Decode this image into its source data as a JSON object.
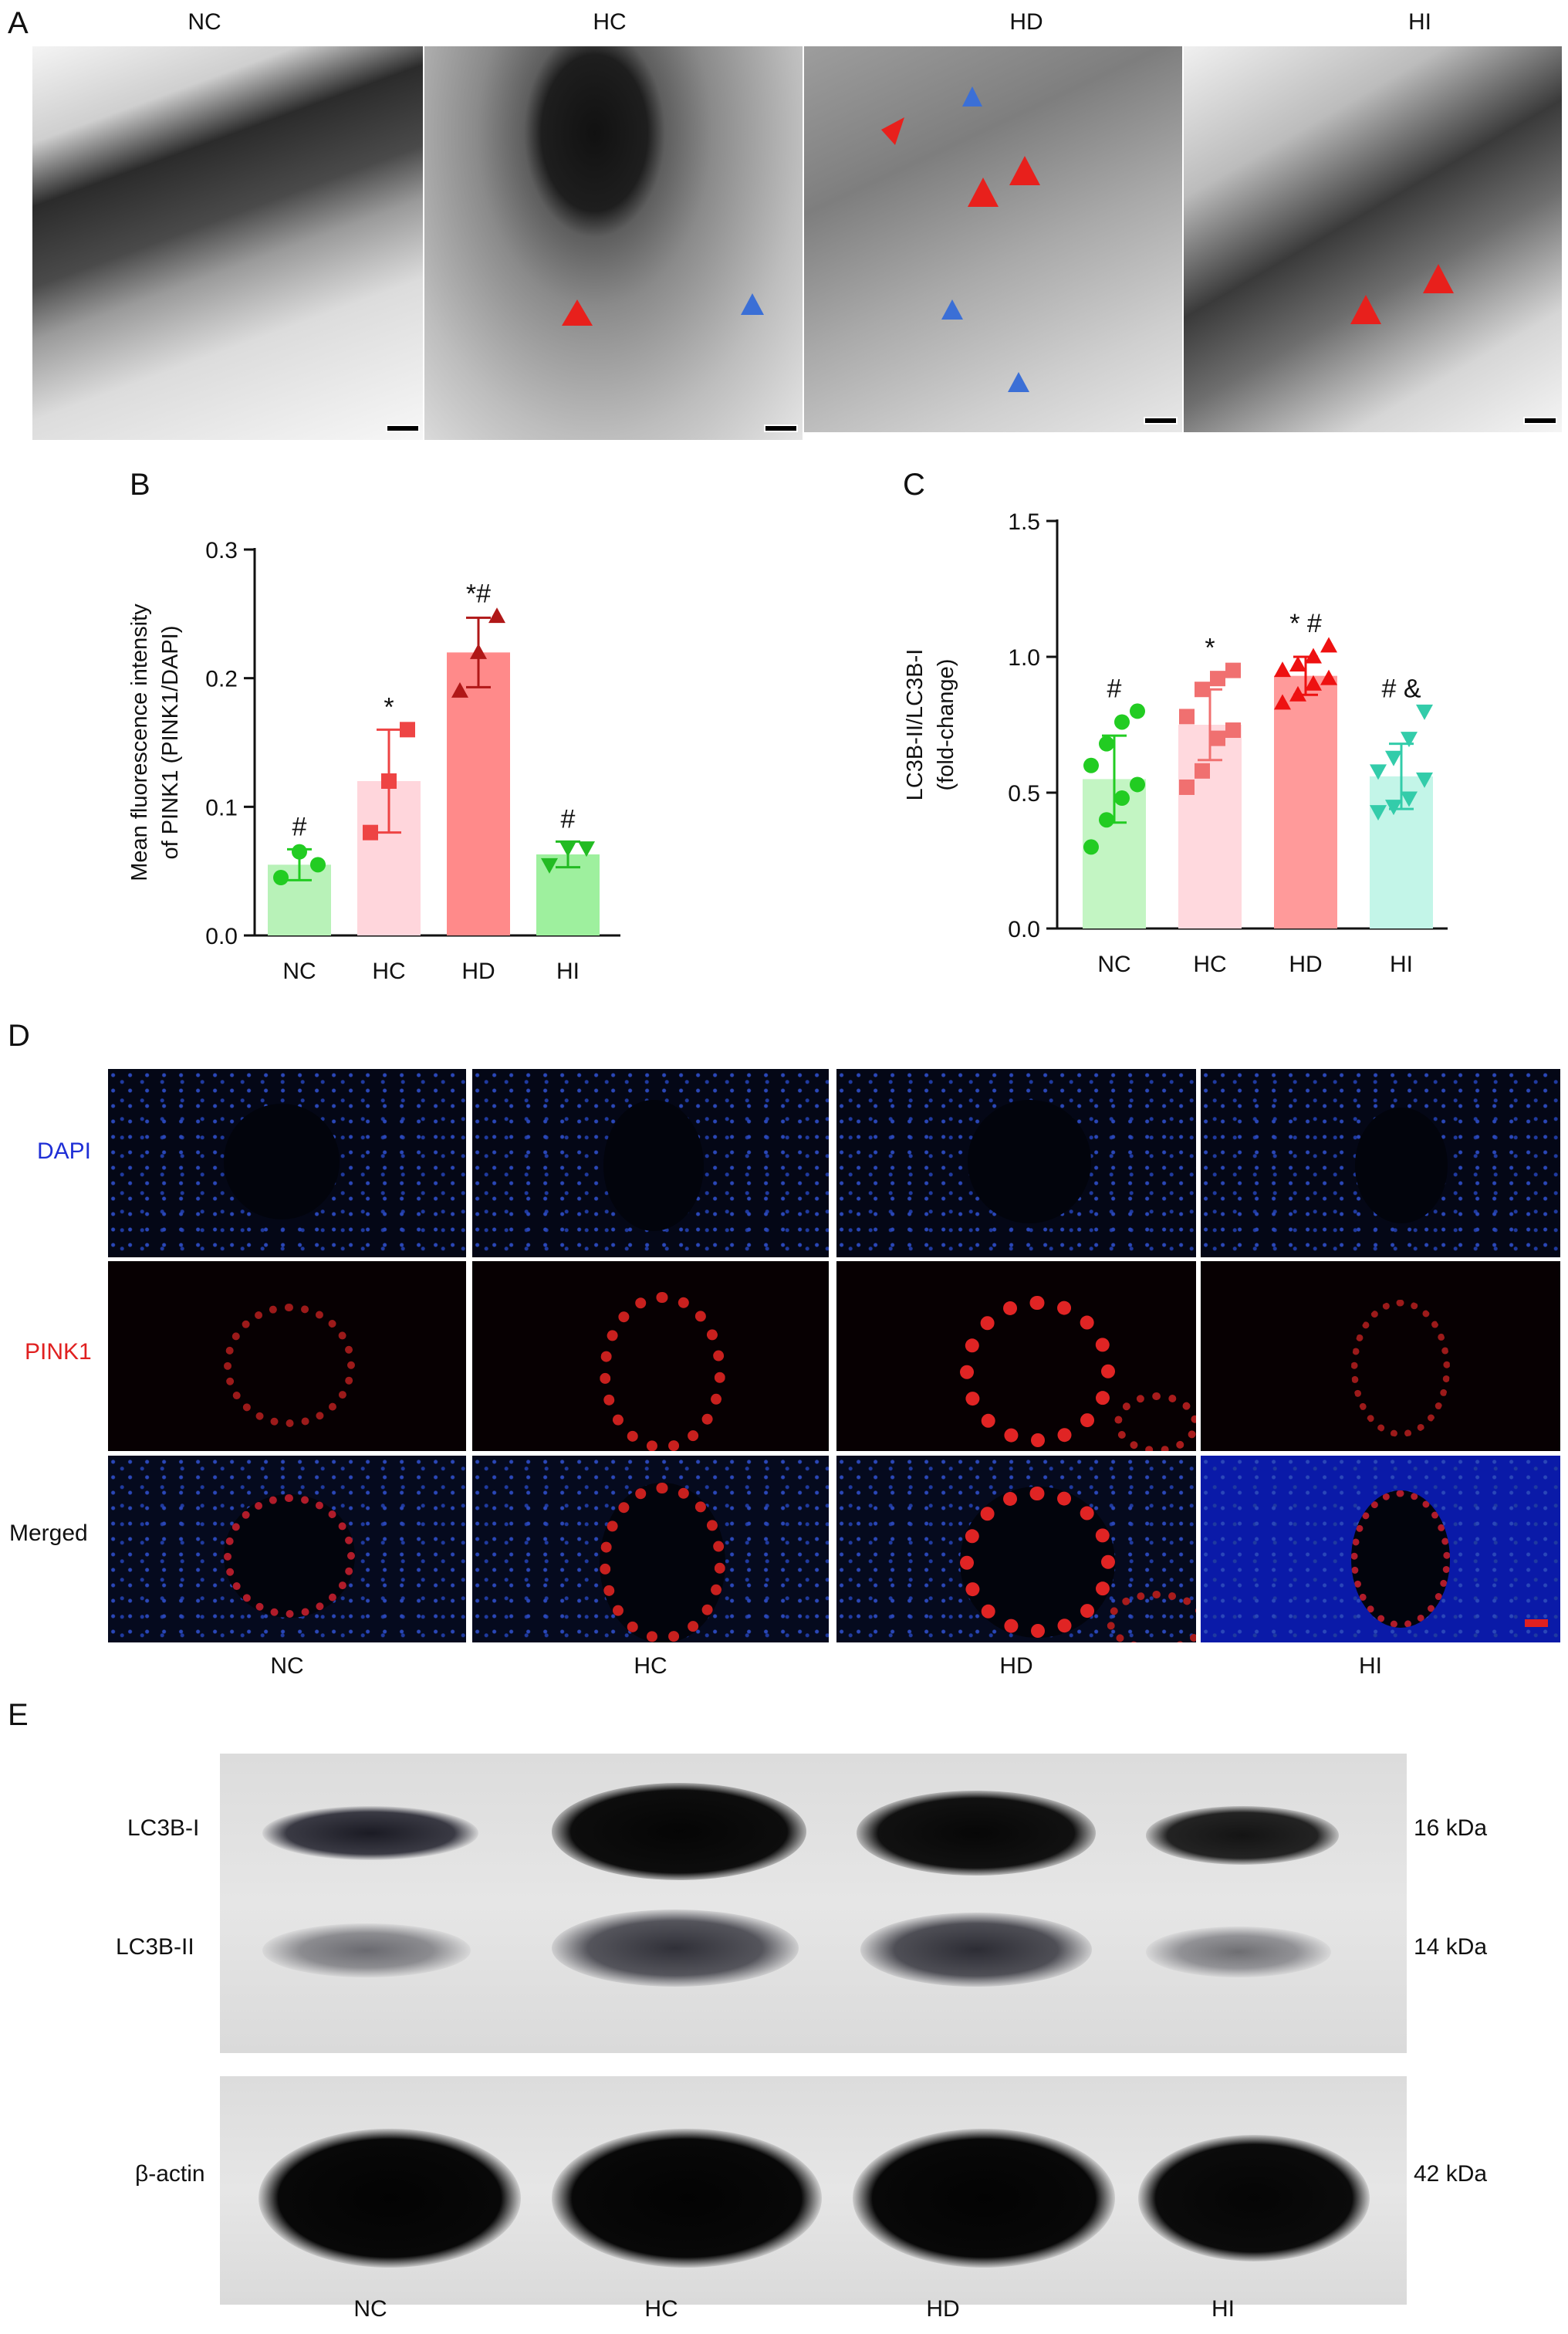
{
  "panels": {
    "A": "A",
    "B": "B",
    "C": "C",
    "D": "D",
    "E": "E"
  },
  "groups": [
    "NC",
    "HC",
    "HD",
    "HI"
  ],
  "panel_a": {
    "columns": [
      "NC",
      "HC",
      "HD",
      "HI"
    ]
  },
  "chart_data": [
    {
      "type": "bar",
      "panel": "B",
      "categories": [
        "NC",
        "HC",
        "HD",
        "HI"
      ],
      "values": [
        0.055,
        0.12,
        0.22,
        0.063
      ],
      "errors": [
        0.012,
        0.04,
        0.027,
        0.01
      ],
      "points": [
        [
          0.045,
          0.065,
          0.055
        ],
        [
          0.08,
          0.12,
          0.16
        ],
        [
          0.19,
          0.22,
          0.248
        ],
        [
          0.055,
          0.068,
          0.068
        ]
      ],
      "markers": [
        "circle",
        "square",
        "triangle-up",
        "triangle-down"
      ],
      "annotations": [
        "#",
        "*",
        "*#",
        "#"
      ],
      "ylabel": "Mean fluorescence intensity of PINK1 (PINK1/DAPI)",
      "ylabel_lines": [
        "Mean fluorescence intensity",
        "of PINK1 (PINK1/DAPI)"
      ],
      "ylim": [
        0,
        0.3
      ],
      "yticks": [
        "0.0",
        "0.1",
        "0.2",
        "0.3"
      ],
      "bar_colors": [
        "#b8f2b8",
        "#ffd6dc",
        "#ff8a8a",
        "#9ef09e"
      ],
      "point_colors": [
        "#22cc22",
        "#ee4444",
        "#b01818",
        "#22bb22"
      ]
    },
    {
      "type": "bar",
      "panel": "C",
      "categories": [
        "NC",
        "HC",
        "HD",
        "HI"
      ],
      "values": [
        0.55,
        0.75,
        0.93,
        0.56
      ],
      "errors": [
        0.16,
        0.13,
        0.07,
        0.12
      ],
      "points": [
        [
          0.3,
          0.4,
          0.48,
          0.53,
          0.6,
          0.68,
          0.76,
          0.8
        ],
        [
          0.52,
          0.58,
          0.7,
          0.73,
          0.78,
          0.88,
          0.92,
          0.95
        ],
        [
          0.83,
          0.86,
          0.9,
          0.92,
          0.95,
          0.97,
          1.0,
          1.04
        ],
        [
          0.43,
          0.45,
          0.48,
          0.55,
          0.58,
          0.63,
          0.7,
          0.8
        ]
      ],
      "markers": [
        "circle",
        "square",
        "triangle-up",
        "triangle-down"
      ],
      "annotations": [
        "#",
        "*",
        "*  #",
        "# &"
      ],
      "ylabel": "LC3B-II/LC3B-I (fold-change)",
      "ylabel_lines": [
        "LC3B-II/LC3B-I",
        "(fold-change)"
      ],
      "ylim": [
        0,
        1.5
      ],
      "yticks": [
        "0.0",
        "0.5",
        "1.0",
        "1.5"
      ],
      "bar_colors": [
        "#c3f5c3",
        "#ffd9de",
        "#ff9a9a",
        "#c3f5e8"
      ],
      "point_colors": [
        "#22cc22",
        "#f07070",
        "#ee1111",
        "#33ccaa"
      ]
    }
  ],
  "panel_d": {
    "rows": [
      "DAPI",
      "PINK1",
      "Merged"
    ],
    "row_colors": [
      "#1f2fd6",
      "#e02020",
      "#111111"
    ],
    "columns": [
      "NC",
      "HC",
      "HD",
      "HI"
    ]
  },
  "panel_e": {
    "bands": [
      "LC3B-I",
      "LC3B-II",
      "β-actin"
    ],
    "sizes": [
      "16 kDa",
      "14 kDa",
      "42 kDa"
    ],
    "columns": [
      "NC",
      "HC",
      "HD",
      "HI"
    ]
  }
}
